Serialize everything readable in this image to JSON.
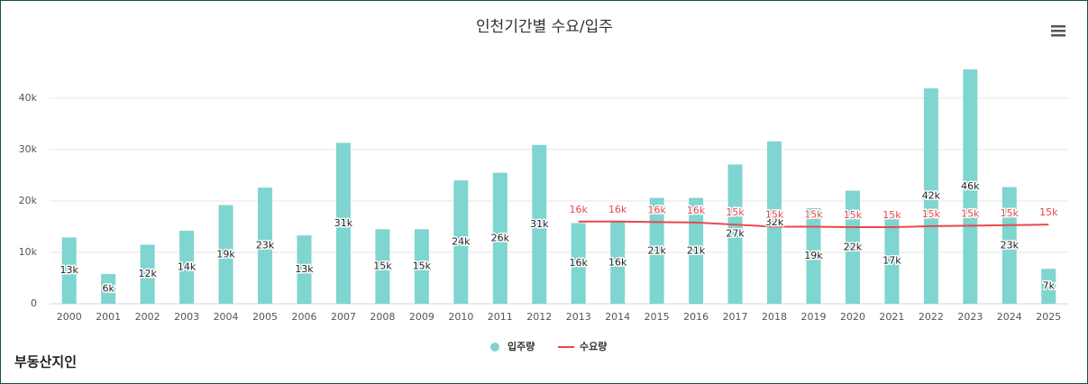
{
  "chart_data": {
    "type": "bar",
    "title": "인천기간별 수요/입주",
    "logo": "부동산지인",
    "categories": [
      "2000",
      "2001",
      "2002",
      "2003",
      "2004",
      "2005",
      "2006",
      "2007",
      "2008",
      "2009",
      "2010",
      "2011",
      "2012",
      "2013",
      "2014",
      "2015",
      "2016",
      "2017",
      "2018",
      "2019",
      "2020",
      "2021",
      "2022",
      "2023",
      "2024",
      "2025"
    ],
    "series": [
      {
        "name": "입주량",
        "type": "bar",
        "color": "#7fd5cf",
        "values": [
          12900,
          5800,
          11500,
          14200,
          19200,
          22600,
          13300,
          31300,
          14500,
          14500,
          24000,
          25500,
          30900,
          15700,
          15900,
          20600,
          20600,
          27100,
          31600,
          18600,
          22000,
          16600,
          41900,
          45600,
          22700,
          6800
        ],
        "value_labels": [
          "13k",
          "6k",
          "12k",
          "14k",
          "19k",
          "23k",
          "13k",
          "31k",
          "15k",
          "15k",
          "24k",
          "26k",
          "31k",
          "16k",
          "16k",
          "21k",
          "21k",
          "27k",
          "32k",
          "19k",
          "22k",
          "17k",
          "42k",
          "46k",
          "23k",
          "7k"
        ]
      },
      {
        "name": "수요량",
        "type": "line",
        "color": "#e8474c",
        "values": [
          null,
          null,
          null,
          null,
          null,
          null,
          null,
          null,
          null,
          null,
          null,
          null,
          null,
          16000,
          16000,
          15900,
          15800,
          15400,
          15000,
          15000,
          14900,
          14900,
          15100,
          15200,
          15300,
          15400
        ],
        "value_labels": [
          null,
          null,
          null,
          null,
          null,
          null,
          null,
          null,
          null,
          null,
          null,
          null,
          null,
          "16k",
          "16k",
          "16k",
          "16k",
          "15k",
          "15k",
          "15k",
          "15k",
          "15k",
          "15k",
          "15k",
          "15k",
          "15k"
        ]
      }
    ],
    "ylim": [
      0,
      47000
    ],
    "yticks": [
      0,
      {
        "value": 10000,
        "label": "10k"
      },
      {
        "value": 20000,
        "label": "20k"
      },
      {
        "value": 30000,
        "label": "30k"
      },
      {
        "value": 40000,
        "label": "40k"
      }
    ],
    "grid": true,
    "legend": "bottom"
  }
}
